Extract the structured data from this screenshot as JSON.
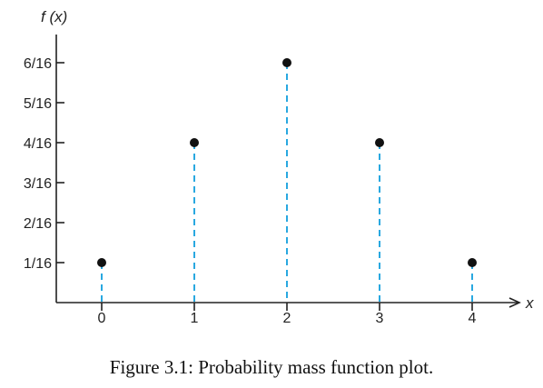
{
  "caption": "Figure 3.1: Probability mass function plot.",
  "chart_data": {
    "type": "scatter",
    "style": "stem",
    "x": [
      0,
      1,
      2,
      3,
      4
    ],
    "y": [
      0.0625,
      0.25,
      0.375,
      0.25,
      0.0625
    ],
    "xlabel": "x",
    "ylabel": "f (x)",
    "xticks": [
      0,
      1,
      2,
      3,
      4
    ],
    "xtick_labels": [
      "0",
      "1",
      "2",
      "3",
      "4"
    ],
    "yticks": [
      0.0625,
      0.125,
      0.1875,
      0.25,
      0.3125,
      0.375
    ],
    "ytick_labels": [
      "1/16",
      "2/16",
      "3/16",
      "4/16",
      "5/16",
      "6/16"
    ],
    "ylim": [
      0,
      0.4375
    ],
    "grid": false,
    "legend": "none",
    "colors": {
      "stem": "#29a8e0",
      "point": "#111111",
      "axis": "#222222"
    }
  }
}
